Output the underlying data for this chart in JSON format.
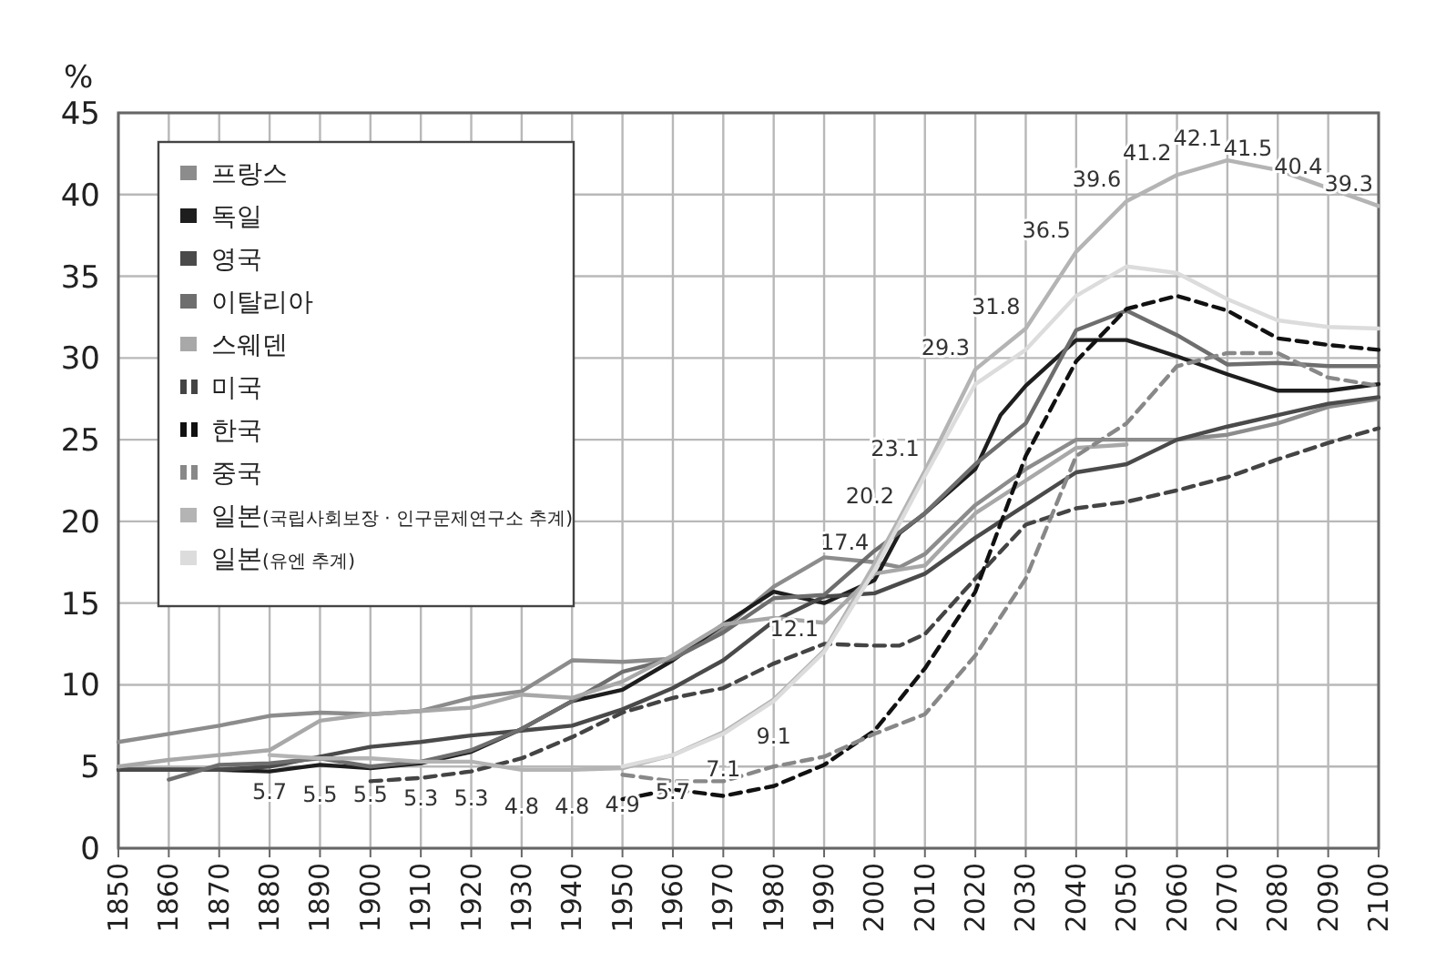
{
  "chart_data": {
    "type": "line",
    "ylabel": "%",
    "xlim": [
      1850,
      2100
    ],
    "xticks": [
      1850,
      1860,
      1870,
      1880,
      1890,
      1900,
      1910,
      1920,
      1930,
      1940,
      1950,
      1960,
      1970,
      1980,
      1990,
      2000,
      2010,
      2020,
      2030,
      2040,
      2050,
      2060,
      2070,
      2080,
      2090,
      2100
    ],
    "ylim": [
      0,
      45
    ],
    "yticks": [
      0,
      5,
      10,
      15,
      20,
      25,
      30,
      35,
      40,
      45
    ],
    "grid": true,
    "legend": "top left",
    "series": [
      {
        "name": "프랑스",
        "color": "#8c8c8c",
        "line_style": "solid",
        "x": [
          1850,
          1860,
          1870,
          1880,
          1890,
          1900,
          1910,
          1920,
          1930,
          1940,
          1950,
          1960,
          1970,
          1980,
          1990,
          2000,
          2005,
          2010,
          2020,
          2030,
          2040,
          2050,
          2060,
          2070,
          2080,
          2090,
          2100
        ],
        "values": [
          6.5,
          7.0,
          7.5,
          8.1,
          8.3,
          8.2,
          8.4,
          9.2,
          9.6,
          11.5,
          11.4,
          11.6,
          13.4,
          16.0,
          17.8,
          17.5,
          17.2,
          18.0,
          21.0,
          23.2,
          25.0,
          25.0,
          25.0,
          25.3,
          26.0,
          27.0,
          27.5
        ]
      },
      {
        "name": "독일",
        "color": "#1e1e1e",
        "line_style": "solid",
        "x": [
          1850,
          1860,
          1870,
          1880,
          1890,
          1900,
          1910,
          1920,
          1930,
          1940,
          1950,
          1960,
          1970,
          1980,
          1990,
          2000,
          2005,
          2010,
          2020,
          2025,
          2030,
          2040,
          2050,
          2060,
          2070,
          2080,
          2090,
          2100
        ],
        "values": [
          4.8,
          4.8,
          4.8,
          4.7,
          5.1,
          4.9,
          5.2,
          5.9,
          7.3,
          9.0,
          9.7,
          11.5,
          13.7,
          15.7,
          15.0,
          16.4,
          19.3,
          20.5,
          23.2,
          26.5,
          28.3,
          31.1,
          31.1,
          30.1,
          29.0,
          28.0,
          28.0,
          28.4
        ]
      },
      {
        "name": "영국",
        "color": "#4a4a4a",
        "line_style": "solid",
        "x": [
          1850,
          1860,
          1870,
          1880,
          1890,
          1900,
          1910,
          1920,
          1930,
          1940,
          1950,
          1960,
          1970,
          1980,
          1990,
          2000,
          2010,
          2020,
          2030,
          2040,
          2050,
          2060,
          2070,
          2080,
          2090,
          2100
        ],
        "values": [
          4.8,
          4.8,
          4.8,
          5.0,
          5.6,
          6.2,
          6.5,
          6.9,
          7.2,
          7.5,
          8.5,
          9.8,
          11.5,
          13.9,
          15.4,
          15.6,
          16.8,
          19.0,
          21.0,
          23.0,
          23.5,
          25.0,
          25.8,
          26.5,
          27.2,
          27.6
        ]
      },
      {
        "name": "이탈리아",
        "color": "#6e6e6e",
        "line_style": "solid",
        "x": [
          1860,
          1870,
          1880,
          1890,
          1900,
          1910,
          1920,
          1930,
          1940,
          1950,
          1960,
          1970,
          1980,
          1990,
          2000,
          2010,
          2020,
          2030,
          2040,
          2050,
          2060,
          2070,
          2080,
          2090,
          2100
        ],
        "values": [
          4.2,
          5.1,
          5.2,
          5.5,
          5.0,
          5.3,
          6.0,
          7.3,
          9.0,
          10.8,
          11.6,
          13.2,
          15.3,
          15.5,
          18.2,
          20.5,
          23.5,
          26.0,
          31.7,
          32.9,
          31.4,
          29.6,
          29.7,
          29.5,
          29.5
        ]
      },
      {
        "name": "스웨덴",
        "color": "#a8a8a8",
        "line_style": "solid",
        "x": [
          1850,
          1860,
          1870,
          1880,
          1890,
          1900,
          1910,
          1920,
          1930,
          1940,
          1950,
          1960,
          1970,
          1980,
          1990,
          2000,
          2010,
          2020,
          2030,
          2040,
          2050
        ],
        "values": [
          5.0,
          5.4,
          5.7,
          6.0,
          7.8,
          8.2,
          8.4,
          8.6,
          9.4,
          9.2,
          10.2,
          11.8,
          13.7,
          14.1,
          13.8,
          16.8,
          17.3,
          20.5,
          22.5,
          24.5,
          24.7
        ]
      },
      {
        "name": "미국",
        "color": "#444444",
        "line_style": "dashed",
        "x": [
          1900,
          1910,
          1920,
          1930,
          1940,
          1950,
          1960,
          1970,
          1980,
          1990,
          2000,
          2005,
          2010,
          2020,
          2030,
          2040,
          2050,
          2060,
          2070,
          2080,
          2090,
          2100
        ],
        "values": [
          4.1,
          4.3,
          4.7,
          5.5,
          6.8,
          8.3,
          9.2,
          9.8,
          11.3,
          12.5,
          12.4,
          12.4,
          13.1,
          16.5,
          19.8,
          20.8,
          21.2,
          21.9,
          22.7,
          23.8,
          24.8,
          25.7
        ]
      },
      {
        "name": "한국",
        "color": "#111111",
        "line_style": "dashed",
        "x": [
          1950,
          1960,
          1970,
          1980,
          1990,
          2000,
          2010,
          2020,
          2030,
          2040,
          2050,
          2060,
          2070,
          2080,
          2090,
          2100
        ],
        "values": [
          3.0,
          3.6,
          3.2,
          3.8,
          5.1,
          7.2,
          11.0,
          15.7,
          24.0,
          29.8,
          33.0,
          33.8,
          32.9,
          31.2,
          30.8,
          30.5
        ]
      },
      {
        "name": "중국",
        "color": "#888888",
        "line_style": "dashed",
        "x": [
          1950,
          1960,
          1970,
          1980,
          1990,
          2000,
          2010,
          2020,
          2030,
          2040,
          2050,
          2060,
          2070,
          2080,
          2090,
          2100
        ],
        "values": [
          4.5,
          4.1,
          4.1,
          5.0,
          5.6,
          7.0,
          8.2,
          11.8,
          16.5,
          24.0,
          26.0,
          29.5,
          30.3,
          30.3,
          28.8,
          28.3
        ]
      },
      {
        "name": "일본(국립사회보장 · 인구문제연구소 추계)",
        "color": "#b4b4b4",
        "line_style": "solid",
        "x": [
          1880,
          1890,
          1900,
          1910,
          1920,
          1930,
          1940,
          1950,
          1960,
          1970,
          1980,
          1990,
          2000,
          2005,
          2010,
          2020,
          2030,
          2040,
          2050,
          2060,
          2070,
          2080,
          2090,
          2100
        ],
        "values": [
          5.7,
          5.5,
          5.5,
          5.3,
          5.3,
          4.8,
          4.8,
          4.9,
          5.7,
          7.1,
          9.1,
          12.1,
          17.4,
          20.2,
          23.1,
          29.3,
          31.8,
          36.5,
          39.6,
          41.2,
          42.1,
          41.5,
          40.4,
          39.3
        ],
        "value_labels": [
          "5.7",
          "5.5",
          "5.5",
          "5.3",
          "5.3",
          "4.8",
          "4.8",
          "4.9",
          "5.7",
          "7.1",
          "9.1",
          "12.1",
          "17.4",
          "20.2",
          "23.1",
          "29.3",
          "31.8",
          "36.5",
          "39.6",
          "41.2",
          "42.1",
          "41.5",
          "40.4",
          "39.3"
        ]
      },
      {
        "name": "일본(유엔 추계)",
        "color": "#dcdcdc",
        "line_style": "solid",
        "x": [
          1950,
          1960,
          1970,
          1980,
          1990,
          2000,
          2010,
          2020,
          2030,
          2040,
          2050,
          2060,
          2070,
          2080,
          2090,
          2100
        ],
        "values": [
          5.0,
          5.7,
          7.0,
          9.0,
          12.0,
          17.0,
          22.8,
          28.4,
          30.5,
          33.8,
          35.6,
          35.2,
          33.6,
          32.3,
          31.9,
          31.8
        ]
      }
    ]
  }
}
